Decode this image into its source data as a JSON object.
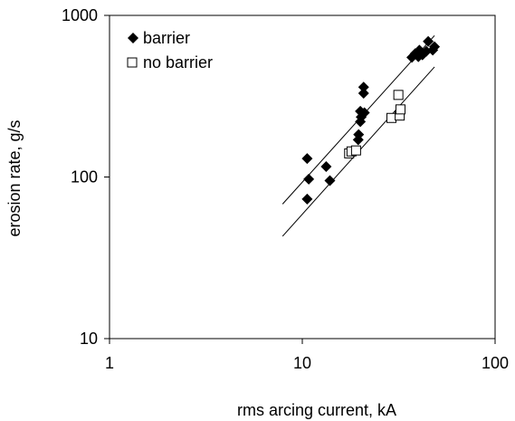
{
  "chart_data": {
    "type": "scatter",
    "xlabel": "rms arcing current, kA",
    "ylabel": "erosion rate, g/s",
    "x_scale": "log",
    "y_scale": "log",
    "xlim": [
      1,
      100
    ],
    "ylim": [
      10,
      1000
    ],
    "x_ticks": [
      "1",
      "10",
      "100"
    ],
    "y_ticks": [
      "10",
      "100",
      "1000"
    ],
    "grid": false,
    "legend_position": "top-left",
    "series": [
      {
        "name": "barrier",
        "marker": "filled-diamond",
        "color": "#000000",
        "points": [
          [
            10.6,
            73
          ],
          [
            10.8,
            97
          ],
          [
            10.6,
            130
          ],
          [
            13.3,
            116
          ],
          [
            13.9,
            95
          ],
          [
            19.5,
            170
          ],
          [
            19.6,
            183
          ],
          [
            20.0,
            220
          ],
          [
            20.2,
            235
          ],
          [
            20.0,
            255
          ],
          [
            21.0,
            250
          ],
          [
            20.8,
            330
          ],
          [
            20.8,
            360
          ],
          [
            37.0,
            550
          ],
          [
            38.5,
            580
          ],
          [
            40.0,
            555
          ],
          [
            40.5,
            610
          ],
          [
            42.0,
            570
          ],
          [
            44.0,
            600
          ],
          [
            45.0,
            690
          ],
          [
            47.5,
            610
          ],
          [
            48.5,
            640
          ]
        ],
        "fit_line": {
          "x": [
            7.9,
            48.5
          ],
          "y": [
            68,
            750
          ]
        }
      },
      {
        "name": "no barrier",
        "marker": "open-square",
        "color": "#000000",
        "points": [
          [
            17.5,
            140
          ],
          [
            18.0,
            144
          ],
          [
            19.0,
            146
          ],
          [
            29.0,
            232
          ],
          [
            31.5,
            322
          ],
          [
            32.0,
            240
          ],
          [
            32.3,
            262
          ]
        ],
        "fit_line": {
          "x": [
            7.9,
            48.5
          ],
          "y": [
            43,
            480
          ]
        }
      }
    ]
  }
}
